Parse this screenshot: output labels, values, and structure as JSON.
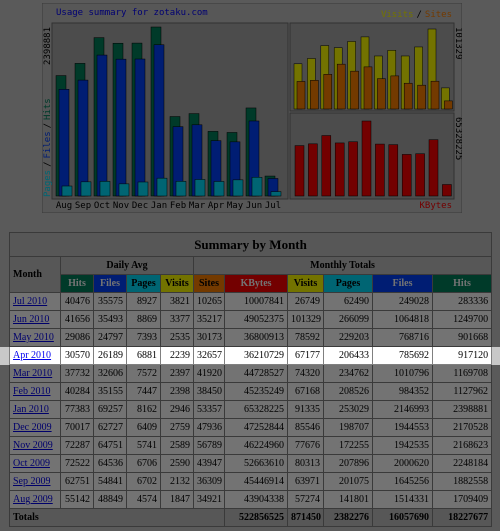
{
  "graph": {
    "title": "Usage summary for zotaku.com",
    "months": [
      "Aug",
      "Sep",
      "Oct",
      "Nov",
      "Dec",
      "Jan",
      "Feb",
      "Mar",
      "Apr",
      "May",
      "Jun",
      "Jul"
    ],
    "left_max": 2398881,
    "right_top_max": 101329,
    "right_bottom_max": 65328225,
    "legend_left": [
      "Pages",
      "/",
      "Files",
      "/",
      "Hits"
    ],
    "legend_right_top": [
      "Visits",
      "/",
      "Sites"
    ],
    "legend_right_bottom": "KBytes",
    "colors": {
      "hits": "#00805c",
      "files": "#0040ff",
      "pages": "#00e0ff",
      "visits": "#ffff00",
      "sites": "#ff8000",
      "kbytes": "#ff0000"
    }
  },
  "table": {
    "title": "Summary by Month",
    "month_header": "Month",
    "daily_header": "Daily Avg",
    "monthly_header": "Monthly Totals",
    "columns": [
      "Hits",
      "Files",
      "Pages",
      "Visits",
      "Sites",
      "KBytes",
      "Visits",
      "Pages",
      "Files",
      "Hits"
    ],
    "rows": [
      [
        "Jul 2010",
        40476,
        35575,
        8927,
        3821,
        10265,
        10007841,
        26749,
        62490,
        249028,
        283336
      ],
      [
        "Jun 2010",
        41656,
        35493,
        8869,
        3377,
        35217,
        49052375,
        101329,
        266099,
        1064818,
        1249700
      ],
      [
        "May 2010",
        29086,
        24797,
        7393,
        2535,
        30173,
        36800913,
        78592,
        229203,
        768716,
        901668
      ],
      [
        "Apr 2010",
        30570,
        26189,
        6881,
        2239,
        32657,
        36210729,
        67177,
        206433,
        785692,
        917120
      ],
      [
        "Mar 2010",
        37732,
        32606,
        7572,
        2397,
        41920,
        44728527,
        74320,
        234762,
        1010796,
        1169708
      ],
      [
        "Feb 2010",
        40284,
        35155,
        7447,
        2398,
        38450,
        45235249,
        67168,
        208526,
        984352,
        1127962
      ],
      [
        "Jan 2010",
        77383,
        69257,
        8162,
        2946,
        53357,
        65328225,
        91335,
        253029,
        2146993,
        2398881
      ],
      [
        "Dec 2009",
        70017,
        62727,
        6409,
        2759,
        47936,
        47252844,
        85546,
        198707,
        1944553,
        2170528
      ],
      [
        "Nov 2009",
        72287,
        64751,
        5741,
        2589,
        56789,
        46224960,
        77676,
        172255,
        1942535,
        2168623
      ],
      [
        "Oct 2009",
        72522,
        64536,
        6706,
        2590,
        43947,
        52663610,
        80313,
        207896,
        2000620,
        2248184
      ],
      [
        "Sep 2009",
        62751,
        54841,
        6702,
        2132,
        36309,
        45446914,
        63971,
        201075,
        1645256,
        1882558
      ],
      [
        "Aug 2009",
        55142,
        48849,
        4574,
        1847,
        34921,
        43904338,
        57274,
        141801,
        1514331,
        1709409
      ]
    ],
    "totals": {
      "label": "Totals",
      "values": [
        522856525,
        871450,
        2382276,
        16057690,
        18227677
      ]
    },
    "highlighted_row": 3
  }
}
